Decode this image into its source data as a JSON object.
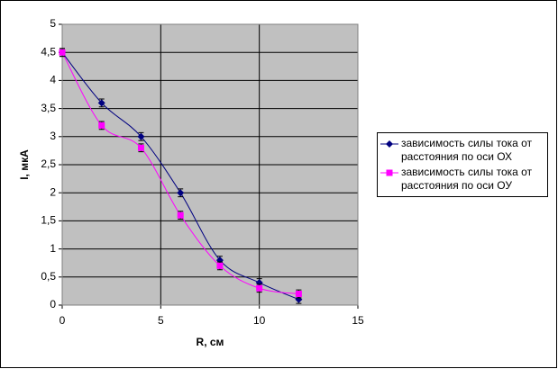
{
  "chart_data": {
    "type": "scatter",
    "xlabel": "R, см",
    "ylabel": "I, мкА",
    "xlim": [
      0,
      15
    ],
    "xticks": [
      0,
      5,
      10,
      15
    ],
    "ylim": [
      0,
      5
    ],
    "yticks": [
      0,
      {
        "value": 0.5,
        "label": "0,5"
      },
      1,
      {
        "value": 1.5,
        "label": "1,5"
      },
      2,
      {
        "value": 2.5,
        "label": "2,5"
      },
      3,
      {
        "value": 3.5,
        "label": "3,5"
      },
      4,
      {
        "value": 4.5,
        "label": "4,5"
      },
      5
    ],
    "grid": true,
    "smooth": true,
    "legend": "right",
    "series": [
      {
        "name": "зависимость силы тока от расстояния по оси ОХ",
        "color": "#000080",
        "marker": "diamond",
        "x": [
          0,
          2,
          4,
          6,
          8,
          10,
          12
        ],
        "values": [
          4.5,
          3.6,
          3.0,
          2.0,
          0.8,
          0.4,
          0.1
        ],
        "error": 0.07
      },
      {
        "name": "зависимость силы тока от расстояния по оси ОУ",
        "color": "#ff00ff",
        "marker": "square",
        "x": [
          0,
          2,
          4,
          6,
          8,
          10,
          12
        ],
        "values": [
          4.5,
          3.2,
          2.8,
          1.6,
          0.7,
          0.3,
          0.2
        ],
        "error": 0.07
      }
    ]
  }
}
